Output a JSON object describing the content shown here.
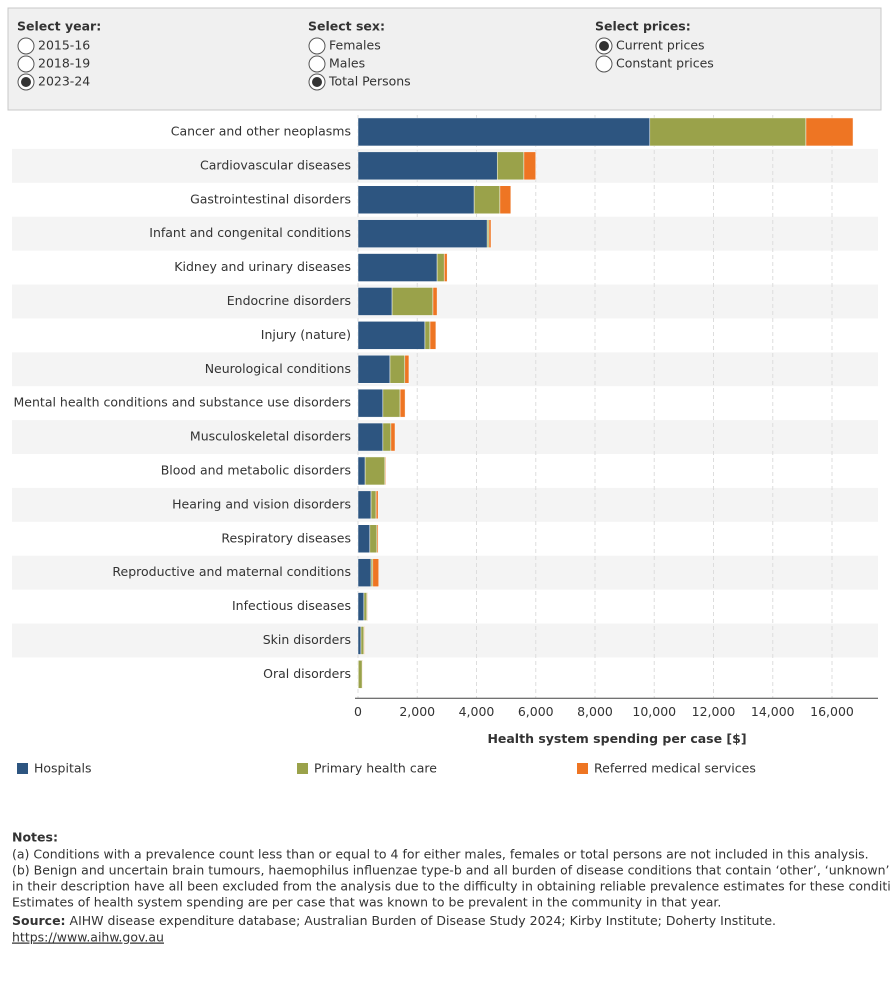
{
  "controls": [
    {
      "label": "Select year:",
      "options": [
        "2015-16",
        "2018-19",
        "2023-24"
      ],
      "selected": 2
    },
    {
      "label": "Select sex:",
      "options": [
        "Females",
        "Males",
        "Total Persons"
      ],
      "selected": 2
    },
    {
      "label": "Select prices:",
      "options": [
        "Current prices",
        "Constant prices"
      ],
      "selected": 0
    }
  ],
  "chart_data": {
    "type": "stacked-bar-horizontal",
    "x_label": "Health system spending per case [$]",
    "categories": [
      "Cancer and other neoplasms",
      "Cardiovascular diseases",
      "Gastrointestinal disorders",
      "Infant and congenital conditions",
      "Kidney and urinary diseases",
      "Endocrine disorders",
      "Injury (nature)",
      "Neurological conditions",
      "Mental health conditions and substance use disorders",
      "Musculoskeletal disorders",
      "Blood and metabolic disorders",
      "Hearing and vision disorders",
      "Respiratory diseases",
      "Reproductive and maternal conditions",
      "Infectious diseases",
      "Skin disorders",
      "Oral disorders"
    ],
    "series": [
      {
        "name": "Hospitals",
        "color": "#2d5580",
        "values": [
          9850,
          4700,
          3920,
          4360,
          2670,
          1150,
          2260,
          1080,
          840,
          840,
          240,
          440,
          400,
          440,
          200,
          100,
          10
        ]
      },
      {
        "name": "Primary health care",
        "color": "#9aa24a",
        "values": [
          5270,
          900,
          870,
          60,
          240,
          1380,
          170,
          500,
          580,
          270,
          670,
          170,
          240,
          60,
          100,
          100,
          130
        ]
      },
      {
        "name": "Referred medical services",
        "color": "#ee7523",
        "values": [
          1590,
          400,
          370,
          70,
          100,
          140,
          200,
          140,
          170,
          140,
          30,
          70,
          40,
          200,
          20,
          20,
          20
        ]
      }
    ],
    "xlim": [
      0,
      16500
    ],
    "xticks": [
      0,
      {
        "value": 2000,
        "label": "2,000"
      },
      {
        "value": 4000,
        "label": "4,000"
      },
      {
        "value": 6000,
        "label": "6,000"
      },
      {
        "value": 8000,
        "label": "8,000"
      },
      {
        "value": 10000,
        "label": "10,000"
      },
      {
        "value": 12000,
        "label": "12,000"
      },
      {
        "value": 14000,
        "label": "14,000"
      },
      {
        "value": 16000,
        "label": "16,000"
      }
    ],
    "grid": true
  },
  "notes": {
    "title": "Notes:",
    "lines": [
      "(a) Conditions with a prevalence count less than or equal to 4 for either males, females or total persons are not included in this analysis.",
      "(b) Benign and uncertain brain tumours, haemophilus influenzae type-b and all burden of disease conditions that contain ‘other’, ‘unknown’ or ‘uncertain’",
      "in their description have all been excluded from the analysis due to the difficulty in obtaining reliable prevalence estimates for these conditions.",
      "Estimates of health system spending are per case that was known to be prevalent in the community in that year."
    ],
    "source_label": "Source:",
    "source": "AIHW disease expenditure database; Australian Burden of Disease Study 2024; Kirby Institute; Doherty Institute.",
    "link": "https://www.aihw.gov.au"
  }
}
